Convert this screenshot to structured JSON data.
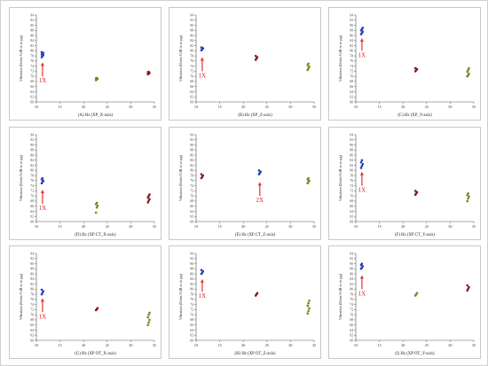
{
  "chart_data": [
    {
      "type": "scatter",
      "xlabel": "(A) Hz (XP_X-axis)",
      "ylabel": "Vibration (Units:VdB in re µg)",
      "xlim": [
        10,
        35
      ],
      "ylim": [
        60,
        94
      ],
      "xticks": [
        10,
        15,
        20,
        25,
        30,
        35
      ],
      "yticks": [
        60,
        62,
        64,
        66,
        68,
        70,
        72,
        74,
        76,
        78,
        80,
        82,
        84,
        86,
        88,
        90,
        92,
        94
      ],
      "annotation": "1X",
      "annotation_x": 11.3,
      "arrow_from": 70,
      "arrow_to": 75.5,
      "groups": [
        {
          "x": 11.3,
          "color": "#2b3fbf",
          "y": [
            77.5,
            78.0,
            78.3,
            78.6,
            78.9,
            79.2,
            79.5
          ]
        },
        {
          "x": 22.8,
          "color": "#6b8e23",
          "y": [
            68.5,
            68.8,
            69.0,
            69.2,
            69.4
          ]
        },
        {
          "x": 33.8,
          "color": "#8b1a1a",
          "y": [
            70.8,
            71.1,
            71.3,
            71.6,
            71.8
          ]
        }
      ]
    },
    {
      "type": "scatter",
      "xlabel": "(B) Hz (XP_Z-axis)",
      "ylabel": "Vibration (Units:VdB in re µg)",
      "xlim": [
        10,
        35
      ],
      "ylim": [
        60,
        94
      ],
      "xticks": [
        10,
        15,
        20,
        25,
        30,
        35
      ],
      "yticks": [
        60,
        62,
        64,
        66,
        68,
        70,
        72,
        74,
        76,
        78,
        80,
        82,
        84,
        86,
        88,
        90,
        92,
        94
      ],
      "annotation": "1X",
      "annotation_x": 11.3,
      "arrow_from": 72,
      "arrow_to": 77.5,
      "groups": [
        {
          "x": 11.3,
          "color": "#2b3fbf",
          "y": [
            80.2,
            80.6,
            81.0,
            81.3
          ]
        },
        {
          "x": 22.8,
          "color": "#8b1a1a",
          "y": [
            76.5,
            77.0,
            77.5,
            78.0
          ]
        },
        {
          "x": 33.8,
          "color": "#6b8e23",
          "y": [
            72.5,
            73.2,
            73.8,
            74.4,
            75.0
          ]
        }
      ]
    },
    {
      "type": "scatter",
      "xlabel": "(C) Hz (XP_Y-axis)",
      "ylabel": "Vibration (Units:VdB in re µg)",
      "xlim": [
        10,
        35
      ],
      "ylim": [
        60,
        94
      ],
      "xticks": [
        10,
        15,
        20,
        25,
        30,
        35
      ],
      "yticks": [
        60,
        62,
        64,
        66,
        68,
        70,
        72,
        74,
        76,
        78,
        80,
        82,
        84,
        86,
        88,
        90,
        92,
        94
      ],
      "annotation": "1X",
      "annotation_x": 11.3,
      "arrow_from": 80,
      "arrow_to": 85,
      "groups": [
        {
          "x": 11.3,
          "color": "#2b3fbf",
          "y": [
            86.5,
            87.0,
            87.5,
            88.0,
            88.5,
            89.0
          ]
        },
        {
          "x": 22.8,
          "color": "#8b1a1a",
          "y": [
            72.0,
            72.4,
            72.8,
            73.2
          ]
        },
        {
          "x": 33.8,
          "color": "#6b8e23",
          "y": [
            70.0,
            70.5,
            71.0,
            71.8,
            72.5,
            73.2
          ]
        }
      ]
    },
    {
      "type": "scatter",
      "xlabel": "(D) Hz (XP CT_X-axis)",
      "ylabel": "Vibration (Units:VdB in re µg)",
      "xlim": [
        10,
        35
      ],
      "ylim": [
        60,
        94
      ],
      "xticks": [
        10,
        15,
        20,
        25,
        30,
        35
      ],
      "yticks": [
        60,
        62,
        64,
        66,
        68,
        70,
        72,
        74,
        76,
        78,
        80,
        82,
        84,
        86,
        88,
        90,
        92,
        94
      ],
      "annotation": "1X",
      "annotation_x": 11.3,
      "arrow_from": 67,
      "arrow_to": 72.5,
      "groups": [
        {
          "x": 11.3,
          "color": "#2b3fbf",
          "y": [
            75.0,
            75.5,
            76.0,
            76.5,
            77.0
          ]
        },
        {
          "x": 22.8,
          "color": "#6b8e23",
          "y": [
            63.5,
            65.5,
            66.2,
            66.8,
            67.3
          ]
        },
        {
          "x": 33.8,
          "color": "#8b1a1a",
          "y": [
            67.5,
            68.2,
            68.8,
            69.4,
            70.0,
            70.6
          ]
        }
      ]
    },
    {
      "type": "scatter",
      "xlabel": "(E) Hz (XP CT_Z-axis)",
      "ylabel": "Vibration (Units:VdB in re µg)",
      "xlim": [
        10,
        35
      ],
      "ylim": [
        60,
        94
      ],
      "xticks": [
        10,
        15,
        20,
        25,
        30,
        35
      ],
      "yticks": [
        60,
        62,
        64,
        66,
        68,
        70,
        72,
        74,
        76,
        78,
        80,
        82,
        84,
        86,
        88,
        90,
        92,
        94
      ],
      "annotation": "2X",
      "annotation_x": 23.5,
      "arrow_from": 70,
      "arrow_to": 75.5,
      "groups": [
        {
          "x": 11.3,
          "color": "#8b1a1a",
          "y": [
            77.0,
            77.5,
            78.0,
            78.5
          ]
        },
        {
          "x": 23.5,
          "color": "#2b3fbf",
          "y": [
            78.5,
            79.0,
            79.5,
            80.0
          ]
        },
        {
          "x": 33.8,
          "color": "#6b8e23",
          "y": [
            75.0,
            75.5,
            76.0,
            76.5,
            77.0
          ]
        }
      ]
    },
    {
      "type": "scatter",
      "xlabel": "(F) Hz (XP CT_Y-axis)",
      "ylabel": "Vibration (Units:VdB in re µg)",
      "xlim": [
        10,
        35
      ],
      "ylim": [
        60,
        94
      ],
      "xticks": [
        10,
        15,
        20,
        25,
        30,
        35
      ],
      "yticks": [
        60,
        62,
        64,
        66,
        68,
        70,
        72,
        74,
        76,
        78,
        80,
        82,
        84,
        86,
        88,
        90,
        92,
        94
      ],
      "annotation": "1X",
      "annotation_x": 11.3,
      "arrow_from": 74,
      "arrow_to": 79.5,
      "groups": [
        {
          "x": 11.3,
          "color": "#2b3fbf",
          "y": [
            81.0,
            81.8,
            82.5,
            83.2,
            84.0
          ]
        },
        {
          "x": 22.8,
          "color": "#8b1a1a",
          "y": [
            70.5,
            71.0,
            71.5,
            72.0
          ]
        },
        {
          "x": 33.8,
          "color": "#6b8e23",
          "y": [
            68.0,
            69.0,
            69.8,
            70.4,
            71.0
          ]
        }
      ]
    },
    {
      "type": "scatter",
      "xlabel": "(G) Hz (XP OT_X-axis)",
      "ylabel": "Vibration (Units:VdB in re µg)",
      "xlim": [
        10,
        35
      ],
      "ylim": [
        60,
        94
      ],
      "xticks": [
        10,
        15,
        20,
        25,
        30,
        35
      ],
      "yticks": [
        60,
        62,
        64,
        66,
        68,
        70,
        72,
        74,
        76,
        78,
        80,
        82,
        84,
        86,
        88,
        90,
        92,
        94
      ],
      "annotation": "1X",
      "annotation_x": 11.3,
      "arrow_from": 71,
      "arrow_to": 76.5,
      "groups": [
        {
          "x": 11.3,
          "color": "#2b3fbf",
          "y": [
            78.0,
            78.6,
            79.2,
            79.8
          ]
        },
        {
          "x": 22.8,
          "color": "#8b1a1a",
          "y": [
            71.8,
            72.2,
            72.6
          ]
        },
        {
          "x": 33.8,
          "color": "#6b8e23",
          "y": [
            66.0,
            67.0,
            68.0,
            69.0,
            70.0,
            70.8
          ]
        }
      ]
    },
    {
      "type": "scatter",
      "xlabel": "(H) Hz (XP OT_Z-axis)",
      "ylabel": "Vibration (Units:VdB in re µg)",
      "xlim": [
        10,
        35
      ],
      "ylim": [
        60,
        94
      ],
      "xticks": [
        10,
        15,
        20,
        25,
        30,
        35
      ],
      "yticks": [
        60,
        62,
        64,
        66,
        68,
        70,
        72,
        74,
        76,
        78,
        80,
        82,
        84,
        86,
        88,
        90,
        92,
        94
      ],
      "annotation": "1X",
      "annotation_x": 11.3,
      "arrow_from": 79,
      "arrow_to": 84,
      "groups": [
        {
          "x": 11.3,
          "color": "#2b3fbf",
          "y": [
            86.0,
            86.5,
            87.0,
            87.5
          ]
        },
        {
          "x": 22.8,
          "color": "#8b1a1a",
          "y": [
            77.5,
            78.0,
            78.5
          ]
        },
        {
          "x": 33.8,
          "color": "#6b8e23",
          "y": [
            70.5,
            71.5,
            72.5,
            73.5,
            74.5,
            75.5
          ]
        }
      ]
    },
    {
      "type": "scatter",
      "xlabel": "(I) Hz (XP OT_Y-axis)",
      "ylabel": "Vibration (Units:VdB in re µg)",
      "xlim": [
        10,
        35
      ],
      "ylim": [
        60,
        94
      ],
      "xticks": [
        10,
        15,
        20,
        25,
        30,
        35
      ],
      "yticks": [
        60,
        62,
        64,
        66,
        68,
        70,
        72,
        74,
        76,
        78,
        80,
        82,
        84,
        86,
        88,
        90,
        92,
        94
      ],
      "annotation": "1X",
      "annotation_x": 11.3,
      "arrow_from": 80,
      "arrow_to": 85.5,
      "groups": [
        {
          "x": 11.3,
          "color": "#2b3fbf",
          "y": [
            88.0,
            88.5,
            89.0,
            89.5,
            90.0
          ]
        },
        {
          "x": 22.8,
          "color": "#6b8e23",
          "y": [
            77.5,
            78.0,
            78.5
          ]
        },
        {
          "x": 33.8,
          "color": "#8b1a1a",
          "y": [
            79.5,
            80.2,
            80.8,
            81.5
          ]
        }
      ]
    }
  ],
  "colors": {
    "arrow": "#e83030",
    "annotation": "#d42020",
    "axis": "#555555",
    "tick_text": "#333333"
  }
}
